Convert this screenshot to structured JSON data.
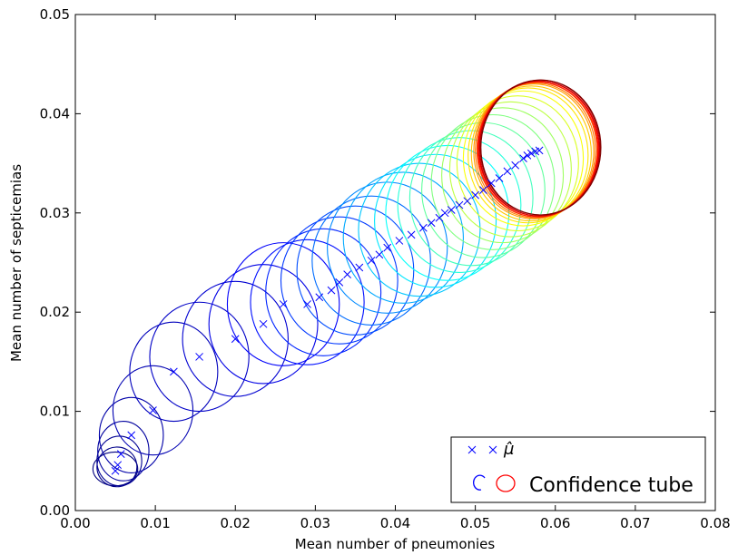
{
  "chart_data": {
    "type": "scatter",
    "xlabel": "Mean number of pneumonies",
    "ylabel": "Mean number of septicemias",
    "xlim": [
      0.0,
      0.08
    ],
    "ylim": [
      0.0,
      0.05
    ],
    "x_ticks": [
      "0.00",
      "0.01",
      "0.02",
      "0.03",
      "0.04",
      "0.05",
      "0.06",
      "0.07",
      "0.08"
    ],
    "y_ticks": [
      "0.00",
      "0.01",
      "0.02",
      "0.03",
      "0.04",
      "0.05"
    ],
    "grid": false,
    "legend_position": "bottom-right",
    "legend": {
      "mu_label": "μ̂",
      "tube_label": "Confidence tube"
    },
    "colors": {
      "marker": "#0000ff",
      "colormap": [
        "#00007f",
        "#0000ff",
        "#0080ff",
        "#00ffff",
        "#80ff80",
        "#ffff00",
        "#ff8000",
        "#ff0000",
        "#7f0000"
      ]
    },
    "series": [
      {
        "name": "μ̂",
        "kind": "markers",
        "x": [
          0.005,
          0.0053,
          0.0057,
          0.007,
          0.0097,
          0.0123,
          0.0155,
          0.02,
          0.0235,
          0.026,
          0.029,
          0.0305,
          0.032,
          0.033,
          0.034,
          0.0355,
          0.037,
          0.038,
          0.039,
          0.0405,
          0.042,
          0.0435,
          0.0445,
          0.0455,
          0.0462,
          0.047,
          0.048,
          0.049,
          0.05,
          0.051,
          0.052,
          0.053,
          0.054,
          0.055,
          0.056,
          0.0565,
          0.057,
          0.0575,
          0.058
        ],
        "y": [
          0.004,
          0.0046,
          0.0057,
          0.0076,
          0.0101,
          0.014,
          0.0155,
          0.0173,
          0.0188,
          0.0208,
          0.0208,
          0.0215,
          0.0222,
          0.023,
          0.0238,
          0.0245,
          0.0252,
          0.0258,
          0.0265,
          0.0272,
          0.0278,
          0.0285,
          0.029,
          0.0295,
          0.03,
          0.0303,
          0.0308,
          0.0312,
          0.0318,
          0.0323,
          0.033,
          0.0335,
          0.0342,
          0.0348,
          0.0355,
          0.0358,
          0.036,
          0.0362,
          0.0363
        ]
      },
      {
        "name": "Confidence tube",
        "kind": "ellipses",
        "ellipses": [
          {
            "cx": 0.005,
            "cy": 0.0042,
            "rx": 0.0028,
            "ry": 0.0017,
            "c": 0.0
          },
          {
            "cx": 0.0052,
            "cy": 0.0044,
            "rx": 0.0025,
            "ry": 0.002,
            "c": 0.01
          },
          {
            "cx": 0.0055,
            "cy": 0.005,
            "rx": 0.0028,
            "ry": 0.0025,
            "c": 0.02
          },
          {
            "cx": 0.006,
            "cy": 0.006,
            "rx": 0.0032,
            "ry": 0.003,
            "c": 0.03
          },
          {
            "cx": 0.007,
            "cy": 0.0076,
            "rx": 0.004,
            "ry": 0.0038,
            "c": 0.04
          },
          {
            "cx": 0.0097,
            "cy": 0.0101,
            "rx": 0.005,
            "ry": 0.0045,
            "c": 0.05
          },
          {
            "cx": 0.0123,
            "cy": 0.014,
            "rx": 0.0055,
            "ry": 0.005,
            "c": 0.06
          },
          {
            "cx": 0.0155,
            "cy": 0.0155,
            "rx": 0.0062,
            "ry": 0.0055,
            "c": 0.07
          },
          {
            "cx": 0.02,
            "cy": 0.0173,
            "rx": 0.0066,
            "ry": 0.0058,
            "c": 0.08
          },
          {
            "cx": 0.0235,
            "cy": 0.0188,
            "rx": 0.0068,
            "ry": 0.006,
            "c": 0.1
          },
          {
            "cx": 0.026,
            "cy": 0.0208,
            "rx": 0.007,
            "ry": 0.0062,
            "c": 0.12
          },
          {
            "cx": 0.029,
            "cy": 0.021,
            "rx": 0.0071,
            "ry": 0.0063,
            "c": 0.14
          },
          {
            "cx": 0.031,
            "cy": 0.022,
            "rx": 0.0072,
            "ry": 0.0064,
            "c": 0.16
          },
          {
            "cx": 0.033,
            "cy": 0.0232,
            "rx": 0.0073,
            "ry": 0.0064,
            "c": 0.18
          },
          {
            "cx": 0.035,
            "cy": 0.0242,
            "rx": 0.0073,
            "ry": 0.0065,
            "c": 0.2
          },
          {
            "cx": 0.037,
            "cy": 0.0252,
            "rx": 0.0074,
            "ry": 0.0065,
            "c": 0.23
          },
          {
            "cx": 0.039,
            "cy": 0.0265,
            "rx": 0.0075,
            "ry": 0.0066,
            "c": 0.26
          },
          {
            "cx": 0.041,
            "cy": 0.0275,
            "rx": 0.0075,
            "ry": 0.0066,
            "c": 0.29
          },
          {
            "cx": 0.043,
            "cy": 0.0283,
            "rx": 0.0076,
            "ry": 0.0067,
            "c": 0.32
          },
          {
            "cx": 0.045,
            "cy": 0.0292,
            "rx": 0.0076,
            "ry": 0.0067,
            "c": 0.35
          },
          {
            "cx": 0.0465,
            "cy": 0.03,
            "rx": 0.0077,
            "ry": 0.0068,
            "c": 0.38
          },
          {
            "cx": 0.048,
            "cy": 0.0308,
            "rx": 0.0077,
            "ry": 0.0068,
            "c": 0.41
          },
          {
            "cx": 0.0495,
            "cy": 0.0315,
            "rx": 0.0077,
            "ry": 0.0068,
            "c": 0.44
          },
          {
            "cx": 0.051,
            "cy": 0.0323,
            "rx": 0.0077,
            "ry": 0.0068,
            "c": 0.47
          },
          {
            "cx": 0.0522,
            "cy": 0.0331,
            "rx": 0.0077,
            "ry": 0.0068,
            "c": 0.5
          },
          {
            "cx": 0.0534,
            "cy": 0.0338,
            "rx": 0.0076,
            "ry": 0.0068,
            "c": 0.53
          },
          {
            "cx": 0.0544,
            "cy": 0.0344,
            "rx": 0.0076,
            "ry": 0.0068,
            "c": 0.56
          },
          {
            "cx": 0.0553,
            "cy": 0.035,
            "rx": 0.0076,
            "ry": 0.0068,
            "c": 0.59
          },
          {
            "cx": 0.056,
            "cy": 0.0355,
            "rx": 0.0075,
            "ry": 0.0068,
            "c": 0.62
          },
          {
            "cx": 0.0566,
            "cy": 0.0358,
            "rx": 0.0075,
            "ry": 0.0068,
            "c": 0.65
          },
          {
            "cx": 0.057,
            "cy": 0.036,
            "rx": 0.0075,
            "ry": 0.0068,
            "c": 0.68
          },
          {
            "cx": 0.0573,
            "cy": 0.0362,
            "rx": 0.0075,
            "ry": 0.0068,
            "c": 0.72
          },
          {
            "cx": 0.0575,
            "cy": 0.0363,
            "rx": 0.0075,
            "ry": 0.0068,
            "c": 0.76
          },
          {
            "cx": 0.0577,
            "cy": 0.0364,
            "rx": 0.0075,
            "ry": 0.0068,
            "c": 0.8
          },
          {
            "cx": 0.0578,
            "cy": 0.0364,
            "rx": 0.0075,
            "ry": 0.0068,
            "c": 0.84
          },
          {
            "cx": 0.0579,
            "cy": 0.0365,
            "rx": 0.0075,
            "ry": 0.0068,
            "c": 0.88
          },
          {
            "cx": 0.058,
            "cy": 0.0365,
            "rx": 0.0075,
            "ry": 0.0068,
            "c": 0.92
          },
          {
            "cx": 0.0581,
            "cy": 0.0366,
            "rx": 0.0075,
            "ry": 0.0068,
            "c": 0.96
          },
          {
            "cx": 0.0582,
            "cy": 0.0366,
            "rx": 0.0075,
            "ry": 0.0068,
            "c": 1.0
          }
        ]
      }
    ]
  }
}
